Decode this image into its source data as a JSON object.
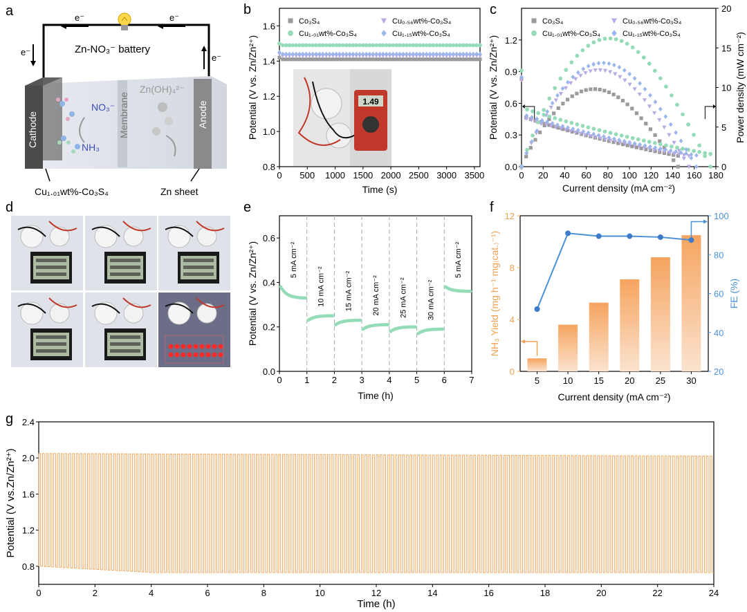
{
  "panels": {
    "a": {
      "letter": "a",
      "battery_label": "Zn-NO₃⁻ battery",
      "electron": "e⁻",
      "cathode": "Cathode",
      "membrane": "Membrane",
      "anode": "Anode",
      "no3": "NO₃⁻",
      "nh3": "NH₃",
      "znoh": "Zn(OH)₄²⁻",
      "cathode_material": "Cu₁.₀₁wt%-Co₃S₄",
      "anode_material": "Zn sheet"
    },
    "b": {
      "letter": "b",
      "meter_reading": "1.49"
    },
    "c": {
      "letter": "c"
    },
    "d": {
      "letter": "d"
    },
    "e": {
      "letter": "e"
    },
    "f": {
      "letter": "f"
    },
    "g": {
      "letter": "g"
    }
  },
  "chart_data": [
    {
      "id": "b",
      "type": "scatter",
      "xlabel": "Time (s)",
      "ylabel": "Potential (V vs. Zn/Zn²⁺)",
      "xlim": [
        0,
        3600
      ],
      "ylim": [
        0.8,
        1.7
      ],
      "xticks": [
        0,
        500,
        1000,
        1500,
        2000,
        2500,
        3000,
        3500
      ],
      "yticks": [
        0.8,
        1.0,
        1.2,
        1.4,
        1.6
      ],
      "yticklabels": [
        "0.8",
        "1.0",
        "1.2",
        "1.4",
        "1.6"
      ],
      "legend": "top, two columns",
      "series": [
        {
          "name": "Co₃S₄",
          "color": "#9a9a9a",
          "marker": "square",
          "x": [
            0,
            3600
          ],
          "y": [
            1.41,
            1.41
          ]
        },
        {
          "name": "Cu₀.₅₆wt%-Co₃S₄",
          "color": "#b9a9e4",
          "marker": "triangle-down",
          "x": [
            0,
            3600
          ],
          "y": [
            1.43,
            1.43
          ]
        },
        {
          "name": "Cu₁.₀₁wt%-Co₃S₄",
          "color": "#94dbb8",
          "marker": "circle",
          "x": [
            0,
            3600
          ],
          "y": [
            1.49,
            1.49
          ]
        },
        {
          "name": "Cu₁.₁₅wt%-Co₃S₄",
          "color": "#9bb6ec",
          "marker": "diamond",
          "x": [
            0,
            3600
          ],
          "y": [
            1.44,
            1.44
          ]
        }
      ]
    },
    {
      "id": "c",
      "type": "scatter",
      "xlabel": "Current density (mA cm⁻²)",
      "ylabel": "Potential (V vs. Zn/Zn²⁺)",
      "y2label": "Power density (mW cm⁻²)",
      "xlim": [
        0,
        180
      ],
      "ylim": [
        0,
        1.5
      ],
      "y2lim": [
        0,
        20
      ],
      "xticks": [
        0,
        20,
        40,
        60,
        80,
        100,
        120,
        140,
        160,
        180
      ],
      "yticks": [
        0,
        0.3,
        0.6,
        0.9,
        1.2
      ],
      "yticklabels": [
        "0.0",
        "0.3",
        "0.6",
        "0.9",
        "1.2"
      ],
      "y2ticks": [
        0,
        5,
        10,
        15,
        20
      ],
      "legend": "top, two columns",
      "series": [
        {
          "name": "Co₃S₄",
          "color": "#9a9a9a",
          "marker": "square",
          "jmax": 145,
          "peak_power": 9.8,
          "peak_j": 72,
          "v0": 0.48
        },
        {
          "name": "Cu₀.₅₆wt%-Co₃S₄",
          "color": "#b9a9e4",
          "marker": "triangle-down",
          "jmax": 155,
          "peak_power": 12.2,
          "peak_j": 75,
          "v0": 0.47
        },
        {
          "name": "Cu₁.₀₁wt%-Co₃S₄",
          "color": "#94dbb8",
          "marker": "circle",
          "jmax": 175,
          "peak_power": 16.2,
          "peak_j": 88,
          "v0": 0.56
        },
        {
          "name": "Cu₁.₁₅wt%-Co₃S₄",
          "color": "#9bb6ec",
          "marker": "diamond",
          "jmax": 162,
          "peak_power": 13.1,
          "peak_j": 78,
          "v0": 0.5
        }
      ]
    },
    {
      "id": "e",
      "type": "line",
      "xlabel": "Time (h)",
      "ylabel": "Potential (V vs. Zn/Zn²⁺)",
      "xlim": [
        0,
        7
      ],
      "ylim": [
        0,
        0.7
      ],
      "xticks": [
        0,
        1,
        2,
        3,
        4,
        5,
        6,
        7
      ],
      "yticks": [
        0,
        0.2,
        0.4,
        0.6
      ],
      "yticklabels": [
        "0.0",
        "0.2",
        "0.4",
        "0.6"
      ],
      "segments": [
        {
          "label": "5 mA cm⁻²",
          "start": 0.38,
          "end": 0.33
        },
        {
          "label": "10 mA cm⁻²",
          "start": 0.23,
          "end": 0.25
        },
        {
          "label": "15 mA cm⁻²",
          "start": 0.21,
          "end": 0.23
        },
        {
          "label": "20 mA cm⁻²",
          "start": 0.19,
          "end": 0.21
        },
        {
          "label": "25 mA cm⁻²",
          "start": 0.18,
          "end": 0.2
        },
        {
          "label": "30 mA cm⁻²",
          "start": 0.17,
          "end": 0.19
        },
        {
          "label": "5 mA cm⁻²",
          "start": 0.38,
          "end": 0.36
        }
      ]
    },
    {
      "id": "f",
      "type": "bar",
      "xlabel": "Current density (mA cm⁻²)",
      "ylabel": "NH₃ Yield (mg h⁻¹ mg₍cat.₎⁻¹)",
      "y2label": "FE (%)",
      "categories": [
        "5",
        "10",
        "15",
        "20",
        "25",
        "30"
      ],
      "series": [
        {
          "name": "NH₃ Yield",
          "type": "bar",
          "values": [
            1.0,
            3.6,
            5.3,
            7.1,
            8.8,
            10.5
          ],
          "color": "#f6a668"
        },
        {
          "name": "FE",
          "type": "line",
          "values": [
            52,
            91,
            89.5,
            89.5,
            89,
            87.5
          ],
          "color": "#4a90d9"
        }
      ],
      "ylim": [
        0,
        12
      ],
      "yticks": [
        0,
        4,
        8,
        12
      ],
      "y2lim": [
        20,
        100
      ],
      "y2ticks": [
        20,
        40,
        60,
        80,
        100
      ]
    },
    {
      "id": "g",
      "type": "line",
      "xlabel": "Time (h)",
      "ylabel": "Potential (V vs.Zn/Zn²⁺)",
      "xlim": [
        0,
        24
      ],
      "ylim": [
        0.6,
        2.4
      ],
      "xticks": [
        0,
        2,
        4,
        6,
        8,
        10,
        12,
        14,
        16,
        18,
        20,
        22,
        24
      ],
      "yticks": [
        0.8,
        1.2,
        1.6,
        2.0,
        2.4
      ],
      "yticklabels": [
        "0.8",
        "1.2",
        "1.6",
        "2.0",
        "2.4"
      ],
      "series": [
        {
          "name": "charge-discharge",
          "color": "#f0a860",
          "charge_start": 2.05,
          "charge_end": 2.02,
          "discharge_start": 0.8,
          "discharge_end": 0.73,
          "cycles": 180
        }
      ]
    }
  ]
}
